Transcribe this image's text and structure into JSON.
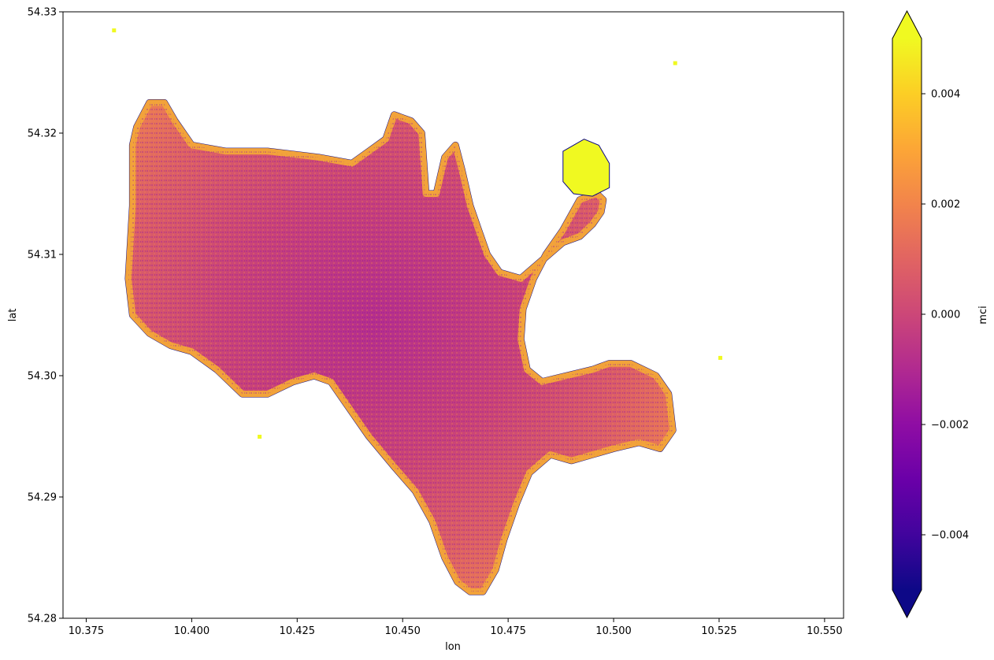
{
  "chart_data": {
    "type": "heatmap",
    "title": "",
    "xlabel": "lon",
    "ylabel": "lat",
    "xlim": [
      10.3695,
      10.5545
    ],
    "ylim": [
      54.28,
      54.33
    ],
    "xticks": [
      10.375,
      10.4,
      10.425,
      10.45,
      10.475,
      10.5,
      10.525,
      10.55
    ],
    "xtick_labels": [
      "10.375",
      "10.400",
      "10.425",
      "10.450",
      "10.475",
      "10.500",
      "10.525",
      "10.550"
    ],
    "yticks": [
      54.28,
      54.29,
      54.3,
      54.31,
      54.32,
      54.33
    ],
    "ytick_labels": [
      "54.28",
      "54.29",
      "54.30",
      "54.31",
      "54.32",
      "54.33"
    ],
    "colorbar": {
      "label": "mci",
      "colormap": "plasma",
      "vmin": -0.005,
      "vmax": 0.005,
      "extend": "both",
      "ticks": [
        -0.004,
        -0.002,
        0.0,
        0.002,
        0.004
      ],
      "tick_labels": [
        "−0.004",
        "−0.002",
        "0.000",
        "0.002",
        "0.004"
      ]
    },
    "lake_outline": [
      [
        10.39,
        54.3225
      ],
      [
        10.3935,
        54.3225
      ],
      [
        10.396,
        54.321
      ],
      [
        10.4,
        54.319
      ],
      [
        10.408,
        54.3185
      ],
      [
        10.418,
        54.3185
      ],
      [
        10.43,
        54.318
      ],
      [
        10.438,
        54.3175
      ],
      [
        10.442,
        54.3185
      ],
      [
        10.446,
        54.3195
      ],
      [
        10.448,
        54.3215
      ],
      [
        10.452,
        54.321
      ],
      [
        10.4545,
        54.32
      ],
      [
        10.4555,
        54.315
      ],
      [
        10.458,
        54.315
      ],
      [
        10.46,
        54.318
      ],
      [
        10.4625,
        54.319
      ],
      [
        10.464,
        54.317
      ],
      [
        10.466,
        54.314
      ],
      [
        10.468,
        54.312
      ],
      [
        10.47,
        54.31
      ],
      [
        10.473,
        54.3085
      ],
      [
        10.478,
        54.308
      ],
      [
        10.483,
        54.3095
      ],
      [
        10.488,
        54.311
      ],
      [
        10.492,
        54.3115
      ],
      [
        10.495,
        54.3125
      ],
      [
        10.497,
        54.3135
      ],
      [
        10.4975,
        54.3145
      ],
      [
        10.496,
        54.315
      ],
      [
        10.492,
        54.3145
      ],
      [
        10.488,
        54.312
      ],
      [
        10.484,
        54.31
      ],
      [
        10.481,
        54.308
      ],
      [
        10.4785,
        54.3055
      ],
      [
        10.478,
        54.303
      ],
      [
        10.4795,
        54.3005
      ],
      [
        10.483,
        54.2995
      ],
      [
        10.489,
        54.3
      ],
      [
        10.495,
        54.3005
      ],
      [
        10.499,
        54.301
      ],
      [
        10.504,
        54.301
      ],
      [
        10.51,
        54.3
      ],
      [
        10.513,
        54.2985
      ],
      [
        10.514,
        54.2955
      ],
      [
        10.511,
        54.294
      ],
      [
        10.506,
        54.2945
      ],
      [
        10.5,
        54.294
      ],
      [
        10.495,
        54.2935
      ],
      [
        10.49,
        54.293
      ],
      [
        10.485,
        54.2935
      ],
      [
        10.48,
        54.292
      ],
      [
        10.477,
        54.2895
      ],
      [
        10.474,
        54.2865
      ],
      [
        10.472,
        54.284
      ],
      [
        10.469,
        54.2822
      ],
      [
        10.466,
        54.2822
      ],
      [
        10.463,
        54.283
      ],
      [
        10.46,
        54.285
      ],
      [
        10.457,
        54.288
      ],
      [
        10.453,
        54.2905
      ],
      [
        10.448,
        54.2925
      ],
      [
        10.442,
        54.295
      ],
      [
        10.436,
        54.298
      ],
      [
        10.433,
        54.2995
      ],
      [
        10.429,
        54.3
      ],
      [
        10.424,
        54.2995
      ],
      [
        10.418,
        54.2985
      ],
      [
        10.412,
        54.2985
      ],
      [
        10.406,
        54.3005
      ],
      [
        10.4,
        54.302
      ],
      [
        10.395,
        54.3025
      ],
      [
        10.39,
        54.3035
      ],
      [
        10.386,
        54.305
      ],
      [
        10.385,
        54.308
      ],
      [
        10.386,
        54.314
      ],
      [
        10.386,
        54.319
      ],
      [
        10.387,
        54.3205
      ]
    ],
    "bay_outline": [
      [
        10.488,
        54.3185
      ],
      [
        10.493,
        54.3195
      ],
      [
        10.4965,
        54.319
      ],
      [
        10.499,
        54.3175
      ],
      [
        10.499,
        54.3155
      ],
      [
        10.495,
        54.3148
      ],
      [
        10.4905,
        54.315
      ],
      [
        10.488,
        54.316
      ]
    ],
    "specks": [
      [
        10.3815,
        54.3285
      ],
      [
        10.5145,
        54.3258
      ],
      [
        10.5252,
        54.3015
      ],
      [
        10.416,
        54.295
      ]
    ]
  }
}
